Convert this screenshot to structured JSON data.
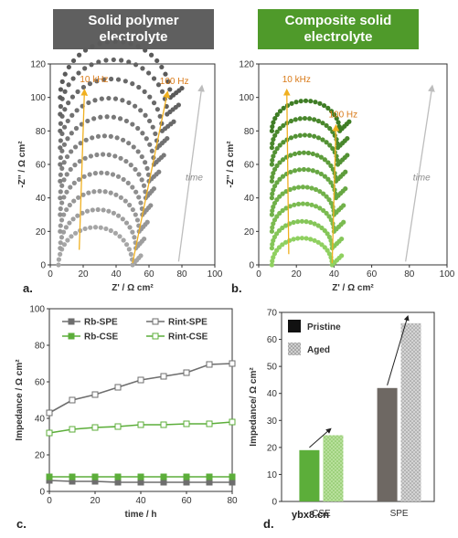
{
  "banners": {
    "left": "Solid polymer electrolyte",
    "right": "Composite solid electrolyte"
  },
  "watermark": "ybx8.cn",
  "chart_data": [
    {
      "panel": "a.",
      "type": "scatter",
      "xlabel": "Z' / Ω cm²",
      "ylabel": "-Z'' / Ω cm²",
      "xlim": [
        0,
        100
      ],
      "ylim": [
        0,
        120
      ],
      "xticks": [
        0,
        20,
        40,
        60,
        80,
        100
      ],
      "yticks": [
        0,
        20,
        40,
        60,
        80,
        100,
        120
      ],
      "annotations": [
        "10 kHz",
        "100 Hz",
        "time"
      ],
      "curves": [
        {
          "start": 5,
          "end": 50,
          "offset": 0,
          "tail_end": 55
        },
        {
          "start": 6,
          "end": 52,
          "offset": 10,
          "tail_end": 57
        },
        {
          "start": 6,
          "end": 54,
          "offset": 20,
          "tail_end": 59
        },
        {
          "start": 6,
          "end": 56,
          "offset": 30,
          "tail_end": 61
        },
        {
          "start": 6,
          "end": 58,
          "offset": 40,
          "tail_end": 63
        },
        {
          "start": 6,
          "end": 60,
          "offset": 50,
          "tail_end": 66
        },
        {
          "start": 6,
          "end": 63,
          "offset": 60,
          "tail_end": 69
        },
        {
          "start": 6,
          "end": 65,
          "offset": 70,
          "tail_end": 71
        },
        {
          "start": 6,
          "end": 68,
          "offset": 80,
          "tail_end": 75
        },
        {
          "start": 6,
          "end": 71,
          "offset": 90,
          "tail_end": 78
        },
        {
          "start": 6,
          "end": 73,
          "offset": 100,
          "tail_end": 80
        }
      ],
      "colors": [
        "#a6a6a6",
        "#5a5a5a"
      ]
    },
    {
      "panel": "b.",
      "type": "scatter",
      "xlabel": "Z' / Ω cm²",
      "ylabel": "-Z'' / Ω cm²",
      "xlim": [
        0,
        100
      ],
      "ylim": [
        0,
        120
      ],
      "xticks": [
        0,
        20,
        40,
        60,
        80,
        100
      ],
      "yticks": [
        0,
        20,
        40,
        60,
        80,
        100,
        120
      ],
      "annotations": [
        "10 kHz",
        "100 Hz",
        "time"
      ],
      "curves": [
        {
          "start": 7,
          "end": 39,
          "offset": 0,
          "tail_end": 44
        },
        {
          "start": 7,
          "end": 39,
          "offset": 10,
          "tail_end": 44
        },
        {
          "start": 7,
          "end": 40,
          "offset": 20,
          "tail_end": 45
        },
        {
          "start": 7,
          "end": 40,
          "offset": 30,
          "tail_end": 45
        },
        {
          "start": 7,
          "end": 41,
          "offset": 40,
          "tail_end": 46
        },
        {
          "start": 7,
          "end": 41,
          "offset": 50,
          "tail_end": 46
        },
        {
          "start": 7,
          "end": 42,
          "offset": 60,
          "tail_end": 47
        },
        {
          "start": 7,
          "end": 42,
          "offset": 70,
          "tail_end": 47
        },
        {
          "start": 7,
          "end": 43,
          "offset": 80,
          "tail_end": 48
        }
      ],
      "colors": [
        "#8fd060",
        "#3f7d25"
      ]
    },
    {
      "panel": "c.",
      "type": "line",
      "xlabel": "time / h",
      "ylabel": "Impedance / Ω cm²",
      "xlim": [
        0,
        80
      ],
      "ylim": [
        0,
        100
      ],
      "xticks": [
        0,
        20,
        40,
        60,
        80
      ],
      "yticks": [
        0,
        20,
        40,
        60,
        80,
        100
      ],
      "x": [
        0,
        10,
        20,
        30,
        40,
        50,
        60,
        70,
        80
      ],
      "series": [
        {
          "name": "Rb-SPE",
          "values": [
            6,
            5.5,
            5.5,
            5,
            5,
            5,
            5,
            5,
            5
          ],
          "color": "#6e6e6e",
          "filled": true
        },
        {
          "name": "Rint-SPE",
          "values": [
            43,
            50,
            53,
            57,
            61,
            63,
            65,
            69.5,
            70
          ],
          "color": "#6e6e6e",
          "filled": false
        },
        {
          "name": "Rb-CSE",
          "values": [
            8,
            8,
            8,
            8,
            8,
            8,
            8,
            8,
            8
          ],
          "color": "#5cae3a",
          "filled": true
        },
        {
          "name": "Rint-CSE",
          "values": [
            32,
            34,
            35,
            35.5,
            36.5,
            36.5,
            37,
            37,
            38
          ],
          "color": "#5cae3a",
          "filled": false
        }
      ]
    },
    {
      "panel": "d.",
      "type": "bar",
      "ylabel": "Impedance/ Ω cm²",
      "ylim": [
        0,
        70
      ],
      "yticks": [
        0,
        10,
        20,
        30,
        40,
        50,
        60,
        70
      ],
      "categories": [
        "CSE",
        "SPE"
      ],
      "series": [
        {
          "name": "Pristine",
          "values": [
            19,
            42
          ]
        },
        {
          "name": "Aged",
          "values": [
            24.5,
            66
          ]
        }
      ],
      "bar_colors": {
        "CSE": {
          "pristine": "#5cae3a",
          "aged": "#a9d98a"
        },
        "SPE": {
          "pristine": "#6e6863",
          "aged": "#bdbdbd"
        }
      }
    }
  ]
}
